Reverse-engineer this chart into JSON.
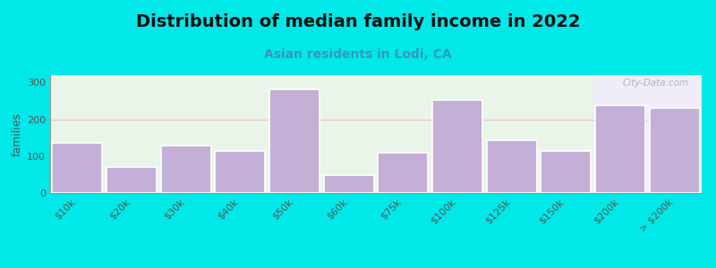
{
  "title": "Distribution of median family income in 2022",
  "subtitle": "Asian residents in Lodi, CA",
  "categories": [
    "$10k",
    "$20k",
    "$30k",
    "$40k",
    "$50k",
    "$60k",
    "$75k",
    "$100k",
    "$125k",
    "$150k",
    "$200k",
    "> $200k"
  ],
  "values": [
    135,
    70,
    128,
    115,
    280,
    48,
    108,
    252,
    143,
    115,
    238,
    230
  ],
  "bar_color": "#c4afd6",
  "background_color": "#00e8e8",
  "plot_bg_left": "#e8f5e8",
  "plot_bg_right": "#f0ecf8",
  "ylabel": "families",
  "ylim": [
    0,
    320
  ],
  "yticks": [
    0,
    100,
    200,
    300
  ],
  "watermark": "City-Data.com",
  "title_fontsize": 14,
  "subtitle_fontsize": 10,
  "axis_label_fontsize": 9,
  "tick_fontsize": 8,
  "bg_split_index": 10
}
